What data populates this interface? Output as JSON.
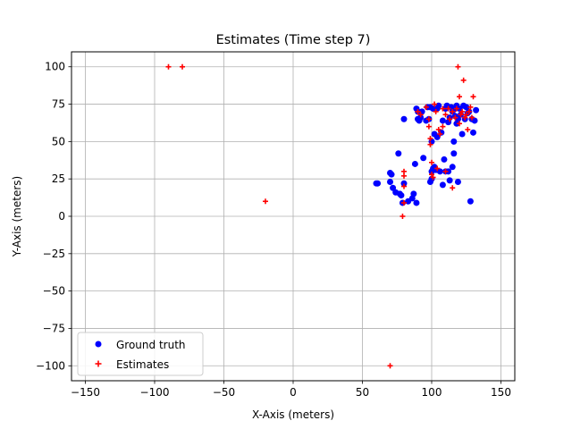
{
  "chart_data": {
    "type": "scatter",
    "title": "Estimates (Time step 7)",
    "xlabel": "X-Axis (meters)",
    "ylabel": "Y-Axis (meters)",
    "xlim": [
      -160,
      160
    ],
    "ylim": [
      -110,
      110
    ],
    "xticks": [
      -150,
      -100,
      -50,
      0,
      50,
      100,
      150
    ],
    "yticks": [
      -100,
      -75,
      -50,
      -25,
      0,
      25,
      50,
      75,
      100
    ],
    "grid": true,
    "legend_position": "lower-left",
    "series": [
      {
        "name": "Ground truth",
        "marker": "circle",
        "color": "#0000ff",
        "points": [
          [
            60,
            22
          ],
          [
            61,
            22
          ],
          [
            70,
            23
          ],
          [
            70,
            29
          ],
          [
            71,
            28
          ],
          [
            72,
            19
          ],
          [
            74,
            16
          ],
          [
            76,
            42
          ],
          [
            77,
            15
          ],
          [
            78,
            14
          ],
          [
            79,
            9
          ],
          [
            80,
            22
          ],
          [
            80,
            65
          ],
          [
            83,
            10
          ],
          [
            86,
            12
          ],
          [
            87,
            15
          ],
          [
            88,
            35
          ],
          [
            89,
            9
          ],
          [
            89,
            72
          ],
          [
            90,
            65
          ],
          [
            90,
            70
          ],
          [
            91,
            64
          ],
          [
            92,
            66
          ],
          [
            93,
            70
          ],
          [
            94,
            39
          ],
          [
            96,
            64
          ],
          [
            97,
            73
          ],
          [
            98,
            65
          ],
          [
            99,
            73
          ],
          [
            99,
            23
          ],
          [
            100,
            25
          ],
          [
            100,
            30
          ],
          [
            100,
            50
          ],
          [
            101,
            32
          ],
          [
            102,
            55
          ],
          [
            102,
            33
          ],
          [
            103,
            31
          ],
          [
            104,
            53
          ],
          [
            105,
            74
          ],
          [
            106,
            30
          ],
          [
            107,
            56
          ],
          [
            108,
            21
          ],
          [
            108,
            64
          ],
          [
            109,
            38
          ],
          [
            110,
            30
          ],
          [
            110,
            72
          ],
          [
            111,
            74
          ],
          [
            112,
            30
          ],
          [
            112,
            63
          ],
          [
            113,
            24
          ],
          [
            113,
            66
          ],
          [
            114,
            73
          ],
          [
            115,
            33
          ],
          [
            115,
            70
          ],
          [
            116,
            42
          ],
          [
            116,
            50
          ],
          [
            117,
            67
          ],
          [
            117,
            72
          ],
          [
            118,
            62
          ],
          [
            119,
            23
          ],
          [
            119,
            65
          ],
          [
            120,
            72
          ],
          [
            121,
            68
          ],
          [
            122,
            55
          ],
          [
            123,
            74
          ],
          [
            124,
            65
          ],
          [
            125,
            73
          ],
          [
            126,
            69
          ],
          [
            127,
            70
          ],
          [
            128,
            10
          ],
          [
            129,
            65
          ],
          [
            130,
            56
          ],
          [
            131,
            64
          ],
          [
            132,
            71
          ],
          [
            101,
            72
          ],
          [
            104,
            72
          ],
          [
            118,
            74
          ]
        ]
      },
      {
        "name": "Estimates",
        "marker": "plus",
        "color": "#ff0000",
        "points": [
          [
            -90,
            100
          ],
          [
            -80,
            100
          ],
          [
            -20,
            10
          ],
          [
            70,
            -100
          ],
          [
            79,
            0
          ],
          [
            80,
            9
          ],
          [
            80,
            20
          ],
          [
            80,
            27
          ],
          [
            80,
            30
          ],
          [
            90,
            70
          ],
          [
            92,
            68
          ],
          [
            96,
            73
          ],
          [
            98,
            65
          ],
          [
            98,
            60
          ],
          [
            99,
            52
          ],
          [
            99,
            48
          ],
          [
            100,
            36
          ],
          [
            100,
            28
          ],
          [
            101,
            26
          ],
          [
            102,
            75
          ],
          [
            103,
            70
          ],
          [
            104,
            32
          ],
          [
            105,
            58
          ],
          [
            106,
            55
          ],
          [
            108,
            60
          ],
          [
            108,
            72
          ],
          [
            110,
            68
          ],
          [
            110,
            30
          ],
          [
            112,
            72
          ],
          [
            113,
            65
          ],
          [
            115,
            19
          ],
          [
            115,
            70
          ],
          [
            117,
            66
          ],
          [
            118,
            72
          ],
          [
            119,
            100
          ],
          [
            120,
            80
          ],
          [
            120,
            62
          ],
          [
            121,
            68
          ],
          [
            122,
            70
          ],
          [
            123,
            91
          ],
          [
            124,
            66
          ],
          [
            125,
            68
          ],
          [
            126,
            58
          ],
          [
            127,
            70
          ],
          [
            128,
            73
          ],
          [
            129,
            66
          ],
          [
            130,
            80
          ]
        ]
      }
    ]
  }
}
